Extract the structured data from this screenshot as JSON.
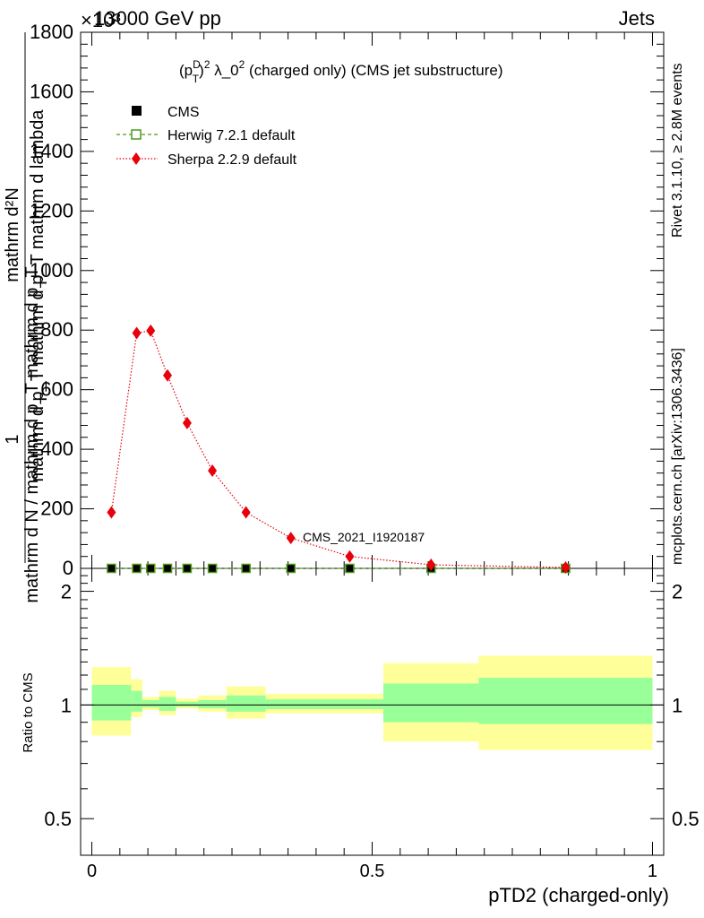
{
  "header": {
    "energy_label": "13000 GeV pp",
    "process_label": "Jets",
    "exponent_label": "×10³"
  },
  "side_labels": {
    "rivet": "Rivet 3.1.10, ≥ 2.8M events",
    "mcplots": "mcplots.cern.ch [arXiv:1306.3436]"
  },
  "watermark": "CMS_2021_I1920187",
  "main_plot": {
    "title_parts": {
      "open": "(p",
      "sup_d": "D",
      "sub_t": "T",
      "close": ")",
      "sup_2a": "2",
      "mid": " λ_0",
      "sup_2b": "2",
      "tail": " (charged only) (CMS jet substructure)"
    },
    "ylabel_num": "mathrm d²N",
    "ylabel_den": "mathrm d p_T mathrm d p_T mathrm d lambda",
    "ylabel_left": "1",
    "ylabel_left_den": "mathrm d N / mathrm d p_T mathrm d p_T"
  },
  "legend": [
    {
      "label": "CMS",
      "color": "#000000",
      "marker": "square-filled"
    },
    {
      "label": "Herwig 7.2.1 default",
      "color": "#4d9a1a",
      "marker": "square-open",
      "line": "dashed"
    },
    {
      "label": "Sherpa 2.2.9 default",
      "color": "#e8000b",
      "marker": "diamond",
      "line": "dotted"
    }
  ],
  "ratio_plot": {
    "ylabel": "Ratio to CMS",
    "xlabel": "pTD2 (charged-only)"
  },
  "chart_data": [
    {
      "type": "scatter",
      "title": "(p_T^D)^2 λ_0^2 (charged only) (CMS jet substructure)",
      "ylabel": "1 / mathrm d N / mathrm d p_T mathrm d p_T  mathrm d²N / mathrm d p_T mathrm d p_T mathrm d lambda",
      "xlim": [
        -0.02,
        1.02
      ],
      "ylim": [
        0,
        1800
      ],
      "y_scale_factor": "×10³",
      "y_ticks": [
        "0",
        "200",
        "400",
        "600",
        "800",
        "1000",
        "1200",
        "1400",
        "1600",
        "1800"
      ],
      "x_ticks": [
        "0",
        "0.5",
        "1"
      ],
      "series": [
        {
          "name": "CMS",
          "color": "#000000",
          "x": [
            0.035,
            0.08,
            0.105,
            0.135,
            0.17,
            0.215,
            0.275,
            0.355,
            0.46,
            0.605,
            0.845
          ],
          "y": [
            0,
            0,
            0,
            0,
            0,
            0,
            0,
            0,
            0,
            0,
            0
          ]
        },
        {
          "name": "Herwig 7.2.1 default",
          "color": "#4d9a1a",
          "x": [
            0.035,
            0.08,
            0.105,
            0.135,
            0.17,
            0.215,
            0.275,
            0.355,
            0.46,
            0.605,
            0.845
          ],
          "y": [
            0,
            0,
            0,
            0,
            0,
            0,
            0,
            0,
            0,
            0,
            0
          ]
        },
        {
          "name": "Sherpa 2.2.9 default",
          "color": "#e8000b",
          "x": [
            0.035,
            0.08,
            0.105,
            0.135,
            0.17,
            0.215,
            0.275,
            0.355,
            0.46,
            0.605,
            0.845
          ],
          "y": [
            188,
            790,
            798,
            648,
            488,
            328,
            188,
            102,
            40,
            12,
            3
          ]
        }
      ]
    },
    {
      "type": "area",
      "ylabel": "Ratio to CMS",
      "xlabel": "pTD2 (charged-only)",
      "xlim": [
        -0.02,
        1.02
      ],
      "ylim": [
        0.4,
        2.3
      ],
      "y_ticks": [
        "0.5",
        "1",
        "2"
      ],
      "x_ticks": [
        "0",
        "0.5",
        "1"
      ],
      "bands": {
        "x_edges": [
          0.0,
          0.07,
          0.09,
          0.12,
          0.15,
          0.19,
          0.24,
          0.31,
          0.52,
          0.69,
          1.0
        ],
        "yellow_low": [
          0.83,
          0.93,
          0.97,
          0.94,
          0.98,
          0.96,
          0.92,
          0.95,
          0.8,
          0.76
        ],
        "yellow_high": [
          1.26,
          1.17,
          1.05,
          1.09,
          1.04,
          1.06,
          1.12,
          1.07,
          1.29,
          1.35
        ],
        "green_low": [
          0.91,
          0.96,
          0.985,
          0.965,
          0.99,
          0.98,
          0.96,
          0.975,
          0.9,
          0.89
        ],
        "green_high": [
          1.13,
          1.09,
          1.03,
          1.05,
          1.02,
          1.03,
          1.06,
          1.035,
          1.14,
          1.18
        ]
      },
      "reference_line": 1.0
    }
  ]
}
